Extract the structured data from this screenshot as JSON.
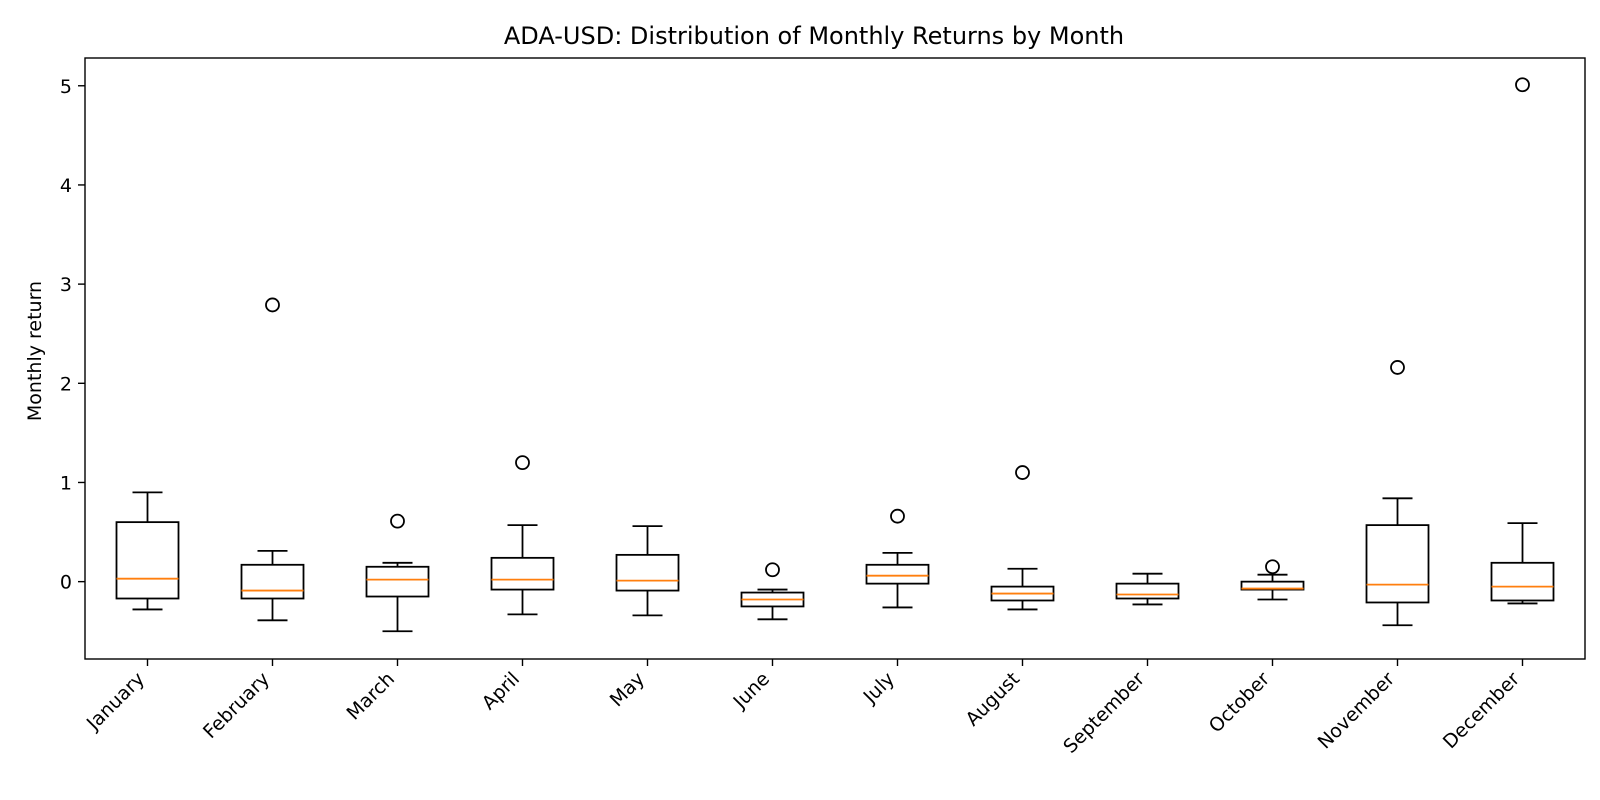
{
  "chart_data": {
    "type": "boxplot",
    "title": "ADA-USD: Distribution of Monthly Returns by Month",
    "xlabel": "",
    "ylabel": "Monthly return",
    "ylim": [
      -0.78,
      5.28
    ],
    "yticks": [
      0,
      1,
      2,
      3,
      4,
      5
    ],
    "grid": false,
    "colors": {
      "box": "#000000",
      "median": "#ff7f0e",
      "flier": "#000000"
    },
    "categories": [
      "January",
      "February",
      "March",
      "April",
      "May",
      "June",
      "July",
      "August",
      "September",
      "October",
      "November",
      "December"
    ],
    "boxes": [
      {
        "whislo": -0.28,
        "q1": -0.17,
        "med": 0.03,
        "q3": 0.6,
        "whishi": 0.9,
        "fliers": []
      },
      {
        "whislo": -0.39,
        "q1": -0.17,
        "med": -0.09,
        "q3": 0.17,
        "whishi": 0.31,
        "fliers": [
          2.79
        ]
      },
      {
        "whislo": -0.5,
        "q1": -0.15,
        "med": 0.02,
        "q3": 0.15,
        "whishi": 0.19,
        "fliers": [
          0.61
        ]
      },
      {
        "whislo": -0.33,
        "q1": -0.08,
        "med": 0.02,
        "q3": 0.24,
        "whishi": 0.57,
        "fliers": [
          1.2
        ]
      },
      {
        "whislo": -0.34,
        "q1": -0.09,
        "med": 0.01,
        "q3": 0.27,
        "whishi": 0.56,
        "fliers": []
      },
      {
        "whislo": -0.38,
        "q1": -0.25,
        "med": -0.18,
        "q3": -0.11,
        "whishi": -0.08,
        "fliers": [
          0.12
        ]
      },
      {
        "whislo": -0.26,
        "q1": -0.02,
        "med": 0.06,
        "q3": 0.17,
        "whishi": 0.29,
        "fliers": [
          0.66
        ]
      },
      {
        "whislo": -0.28,
        "q1": -0.19,
        "med": -0.12,
        "q3": -0.05,
        "whishi": 0.13,
        "fliers": [
          1.1
        ]
      },
      {
        "whislo": -0.23,
        "q1": -0.17,
        "med": -0.13,
        "q3": -0.02,
        "whishi": 0.08,
        "fliers": []
      },
      {
        "whislo": -0.18,
        "q1": -0.08,
        "med": -0.07,
        "q3": 0.0,
        "whishi": 0.07,
        "fliers": [
          0.15
        ]
      },
      {
        "whislo": -0.44,
        "q1": -0.21,
        "med": -0.03,
        "q3": 0.57,
        "whishi": 0.84,
        "fliers": [
          2.16
        ]
      },
      {
        "whislo": -0.22,
        "q1": -0.19,
        "med": -0.05,
        "q3": 0.19,
        "whishi": 0.59,
        "fliers": [
          5.01
        ]
      }
    ]
  }
}
